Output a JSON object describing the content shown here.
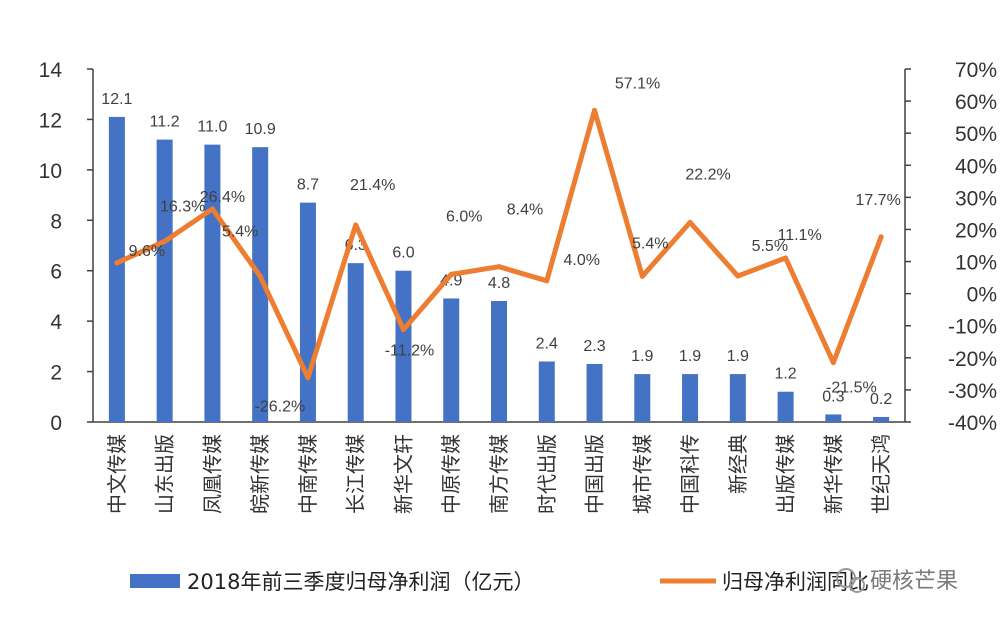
{
  "chart_data": {
    "type": "bar",
    "categories": [
      "中文传媒",
      "山东出版",
      "凤凰传媒",
      "皖新传媒",
      "中南传媒",
      "长江传媒",
      "新华文轩",
      "中原传媒",
      "南方传媒",
      "时代出版",
      "中国出版",
      "城市传媒",
      "中国科传",
      "新经典",
      "出版传媒",
      "新华传媒",
      "世纪天鸿"
    ],
    "series": [
      {
        "name": "2018年前三季度归母净利润（亿元）",
        "type": "bar",
        "axis": "left",
        "color": "#4472C4",
        "values": [
          12.1,
          11.2,
          11.0,
          10.9,
          8.7,
          6.3,
          6.0,
          4.9,
          4.8,
          2.4,
          2.3,
          1.9,
          1.9,
          1.9,
          1.2,
          0.3,
          0.2
        ],
        "labels": [
          "12.1",
          "11.2",
          "11.0",
          "10.9",
          "8.7",
          "6.3",
          "6.0",
          "4.9",
          "4.8",
          "2.4",
          "2.3",
          "1.9",
          "1.9",
          "1.9",
          "1.2",
          "0.3",
          "0.2"
        ]
      },
      {
        "name": "归母净利润同比",
        "type": "line",
        "axis": "right",
        "color": "#ED7D31",
        "values": [
          9.6,
          16.3,
          26.4,
          5.4,
          -26.2,
          21.4,
          -11.2,
          6.0,
          8.4,
          4.0,
          57.1,
          5.4,
          22.2,
          5.5,
          11.1,
          -21.5,
          17.7
        ],
        "labels": [
          "9.6%",
          "16.3%",
          "26.4%",
          "5.4%",
          "-26.2%",
          "21.4%",
          "-11.2%",
          "6.0%",
          "8.4%",
          "4.0%",
          "57.1%",
          "5.4%",
          "22.2%",
          "5.5%",
          "11.1%",
          "-21.5%",
          "17.7%"
        ]
      }
    ],
    "y_left": {
      "min": 0,
      "max": 14,
      "ticks": [
        "0",
        "2",
        "4",
        "6",
        "8",
        "10",
        "12",
        "14"
      ]
    },
    "y_right": {
      "min": -40,
      "max": 70,
      "ticks": [
        "-40%",
        "-30%",
        "-20%",
        "-10%",
        "0%",
        "10%",
        "20%",
        "30%",
        "40%",
        "50%",
        "60%",
        "70%"
      ]
    },
    "legend": {
      "position": "bottom"
    },
    "grid": false
  },
  "legend": {
    "bar_label": "2018年前三季度归母净利润（亿元）",
    "line_label": "归母净利润同比"
  },
  "watermark": {
    "text": "硬核芒果"
  },
  "colors": {
    "bar": "#4472C4",
    "line": "#ED7D31",
    "axis": "#404040"
  }
}
